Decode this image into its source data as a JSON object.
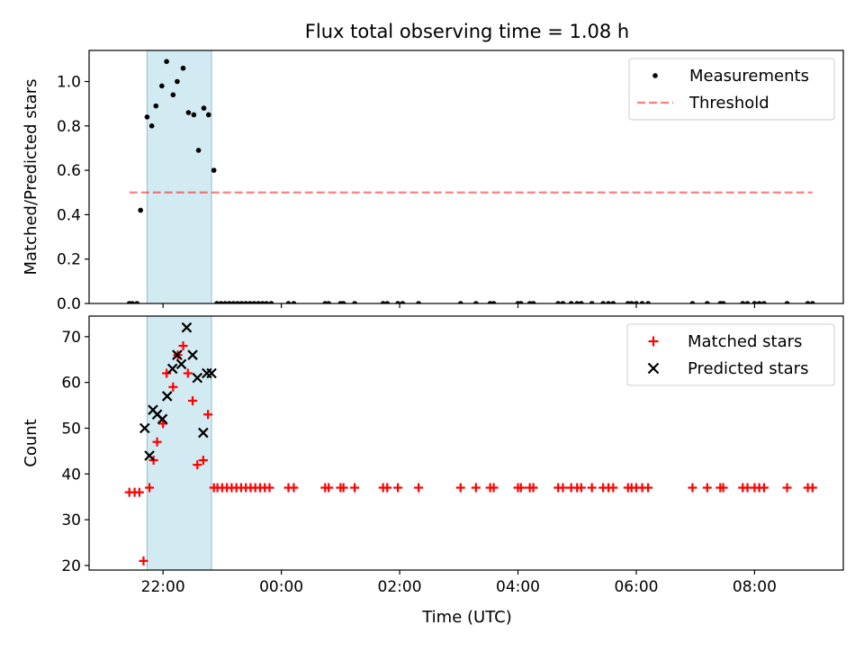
{
  "chart_data": {
    "title": "Flux total observing time = 1.08 h",
    "xlabel": "Time (UTC)",
    "x_unit": "hours UTC on a continuous clock (24+ = after midnight)",
    "xlim": [
      20.75,
      33.5
    ],
    "x_ticks": [
      {
        "value": 22,
        "label": "22:00"
      },
      {
        "value": 24,
        "label": "00:00"
      },
      {
        "value": 26,
        "label": "02:00"
      },
      {
        "value": 28,
        "label": "04:00"
      },
      {
        "value": 30,
        "label": "06:00"
      },
      {
        "value": 32,
        "label": "08:00"
      }
    ],
    "highlight_span": {
      "x": [
        21.73,
        22.82
      ],
      "color": "#add8e6"
    },
    "panels": [
      {
        "type": "scatter",
        "ylabel": "Matched/Predicted stars",
        "ylim": [
          0,
          1.14
        ],
        "y_ticks": [
          {
            "value": 0,
            "label": "0.0"
          },
          {
            "value": 0.2,
            "label": "0.2"
          },
          {
            "value": 0.4,
            "label": "0.4"
          },
          {
            "value": 0.6,
            "label": "0.6"
          },
          {
            "value": 0.8,
            "label": "0.8"
          },
          {
            "value": 1.0,
            "label": "1.0"
          }
        ],
        "legend_position": "upper right",
        "series": [
          {
            "name": "Measurements",
            "marker": "dot",
            "color": "#000000",
            "points": [
              [
                21.43,
                0
              ],
              [
                21.48,
                0
              ],
              [
                21.56,
                0
              ],
              [
                21.62,
                0.42
              ],
              [
                21.73,
                0.84
              ],
              [
                21.81,
                0.8
              ],
              [
                21.88,
                0.89
              ],
              [
                21.98,
                0.98
              ],
              [
                22.06,
                1.09
              ],
              [
                22.17,
                0.94
              ],
              [
                22.24,
                1.0
              ],
              [
                22.34,
                1.06
              ],
              [
                22.43,
                0.86
              ],
              [
                22.52,
                0.85
              ],
              [
                22.6,
                0.69
              ],
              [
                22.69,
                0.88
              ],
              [
                22.77,
                0.85
              ],
              [
                22.86,
                0.6
              ],
              [
                22.91,
                0
              ],
              [
                22.98,
                0
              ],
              [
                23.05,
                0
              ],
              [
                23.12,
                0
              ],
              [
                23.19,
                0
              ],
              [
                23.26,
                0
              ],
              [
                23.33,
                0
              ],
              [
                23.4,
                0
              ],
              [
                23.47,
                0
              ],
              [
                23.54,
                0
              ],
              [
                23.61,
                0
              ],
              [
                23.68,
                0
              ],
              [
                23.75,
                0
              ],
              [
                23.83,
                0
              ],
              [
                24.12,
                0
              ],
              [
                24.21,
                0
              ],
              [
                24.74,
                0
              ],
              [
                24.8,
                0
              ],
              [
                25.0,
                0
              ],
              [
                25.05,
                0
              ],
              [
                25.24,
                0
              ],
              [
                25.72,
                0
              ],
              [
                25.79,
                0
              ],
              [
                25.97,
                0
              ],
              [
                26.05,
                0
              ],
              [
                26.32,
                0
              ],
              [
                27.03,
                0
              ],
              [
                27.29,
                0
              ],
              [
                27.53,
                0
              ],
              [
                27.59,
                0
              ],
              [
                28.0,
                0
              ],
              [
                28.05,
                0
              ],
              [
                28.2,
                0
              ],
              [
                28.26,
                0
              ],
              [
                28.68,
                0
              ],
              [
                28.76,
                0
              ],
              [
                28.9,
                0
              ],
              [
                29.0,
                0
              ],
              [
                29.07,
                0
              ],
              [
                29.25,
                0
              ],
              [
                29.44,
                0
              ],
              [
                29.53,
                0
              ],
              [
                29.61,
                0
              ],
              [
                29.86,
                0
              ],
              [
                29.92,
                0
              ],
              [
                30.0,
                0
              ],
              [
                30.1,
                0
              ],
              [
                30.2,
                0
              ],
              [
                30.95,
                0
              ],
              [
                31.2,
                0
              ],
              [
                31.42,
                0
              ],
              [
                31.47,
                0
              ],
              [
                31.8,
                0
              ],
              [
                31.88,
                0
              ],
              [
                32.0,
                0
              ],
              [
                32.08,
                0
              ],
              [
                32.16,
                0
              ],
              [
                32.55,
                0
              ],
              [
                32.9,
                0
              ],
              [
                32.98,
                0
              ]
            ]
          },
          {
            "name": "Threshold",
            "style": "dashed",
            "color": "#ff0000",
            "alpha": 0.5,
            "x": [
              21.43,
              32.98
            ],
            "y": [
              0.5,
              0.5
            ]
          }
        ]
      },
      {
        "type": "scatter",
        "ylabel": "Count",
        "ylim": [
          19,
          74.5
        ],
        "y_ticks": [
          {
            "value": 20,
            "label": "20"
          },
          {
            "value": 30,
            "label": "30"
          },
          {
            "value": 40,
            "label": "40"
          },
          {
            "value": 50,
            "label": "50"
          },
          {
            "value": 60,
            "label": "60"
          },
          {
            "value": 70,
            "label": "70"
          }
        ],
        "legend_position": "upper right",
        "series": [
          {
            "name": "Matched stars",
            "marker": "plus",
            "color": "#ff0000",
            "points": [
              [
                21.43,
                36
              ],
              [
                21.52,
                36
              ],
              [
                21.6,
                36
              ],
              [
                21.67,
                21
              ],
              [
                21.77,
                37
              ],
              [
                21.84,
                43
              ],
              [
                21.9,
                47
              ],
              [
                22.0,
                51
              ],
              [
                22.06,
                62
              ],
              [
                22.17,
                59
              ],
              [
                22.25,
                66
              ],
              [
                22.34,
                68
              ],
              [
                22.42,
                62
              ],
              [
                22.5,
                56
              ],
              [
                22.58,
                42
              ],
              [
                22.68,
                43
              ],
              [
                22.76,
                53
              ],
              [
                22.86,
                37
              ],
              [
                22.92,
                37
              ],
              [
                23.0,
                37
              ],
              [
                23.08,
                37
              ],
              [
                23.16,
                37
              ],
              [
                23.24,
                37
              ],
              [
                23.32,
                37
              ],
              [
                23.4,
                37
              ],
              [
                23.48,
                37
              ],
              [
                23.56,
                37
              ],
              [
                23.64,
                37
              ],
              [
                23.72,
                37
              ],
              [
                23.8,
                37
              ],
              [
                24.12,
                37
              ],
              [
                24.21,
                37
              ],
              [
                24.74,
                37
              ],
              [
                24.8,
                37
              ],
              [
                25.0,
                37
              ],
              [
                25.05,
                37
              ],
              [
                25.24,
                37
              ],
              [
                25.72,
                37
              ],
              [
                25.79,
                37
              ],
              [
                25.97,
                37
              ],
              [
                26.32,
                37
              ],
              [
                27.03,
                37
              ],
              [
                27.29,
                37
              ],
              [
                27.53,
                37
              ],
              [
                27.59,
                37
              ],
              [
                28.0,
                37
              ],
              [
                28.05,
                37
              ],
              [
                28.2,
                37
              ],
              [
                28.26,
                37
              ],
              [
                28.68,
                37
              ],
              [
                28.76,
                37
              ],
              [
                28.9,
                37
              ],
              [
                29.0,
                37
              ],
              [
                29.07,
                37
              ],
              [
                29.25,
                37
              ],
              [
                29.44,
                37
              ],
              [
                29.53,
                37
              ],
              [
                29.61,
                37
              ],
              [
                29.86,
                37
              ],
              [
                29.92,
                37
              ],
              [
                30.0,
                37
              ],
              [
                30.1,
                37
              ],
              [
                30.2,
                37
              ],
              [
                30.95,
                37
              ],
              [
                31.2,
                37
              ],
              [
                31.42,
                37
              ],
              [
                31.47,
                37
              ],
              [
                31.8,
                37
              ],
              [
                31.88,
                37
              ],
              [
                32.0,
                37
              ],
              [
                32.08,
                37
              ],
              [
                32.16,
                37
              ],
              [
                32.55,
                37
              ],
              [
                32.9,
                37
              ],
              [
                32.98,
                37
              ]
            ]
          },
          {
            "name": "Predicted stars",
            "marker": "x",
            "color": "#000000",
            "points": [
              [
                21.69,
                50
              ],
              [
                21.77,
                44
              ],
              [
                21.83,
                54
              ],
              [
                21.9,
                53
              ],
              [
                21.99,
                52
              ],
              [
                22.07,
                57
              ],
              [
                22.16,
                63
              ],
              [
                22.24,
                66
              ],
              [
                22.31,
                64
              ],
              [
                22.4,
                72
              ],
              [
                22.5,
                66
              ],
              [
                22.58,
                61
              ],
              [
                22.68,
                49
              ],
              [
                22.74,
                62
              ],
              [
                22.82,
                62
              ]
            ]
          }
        ]
      }
    ]
  }
}
